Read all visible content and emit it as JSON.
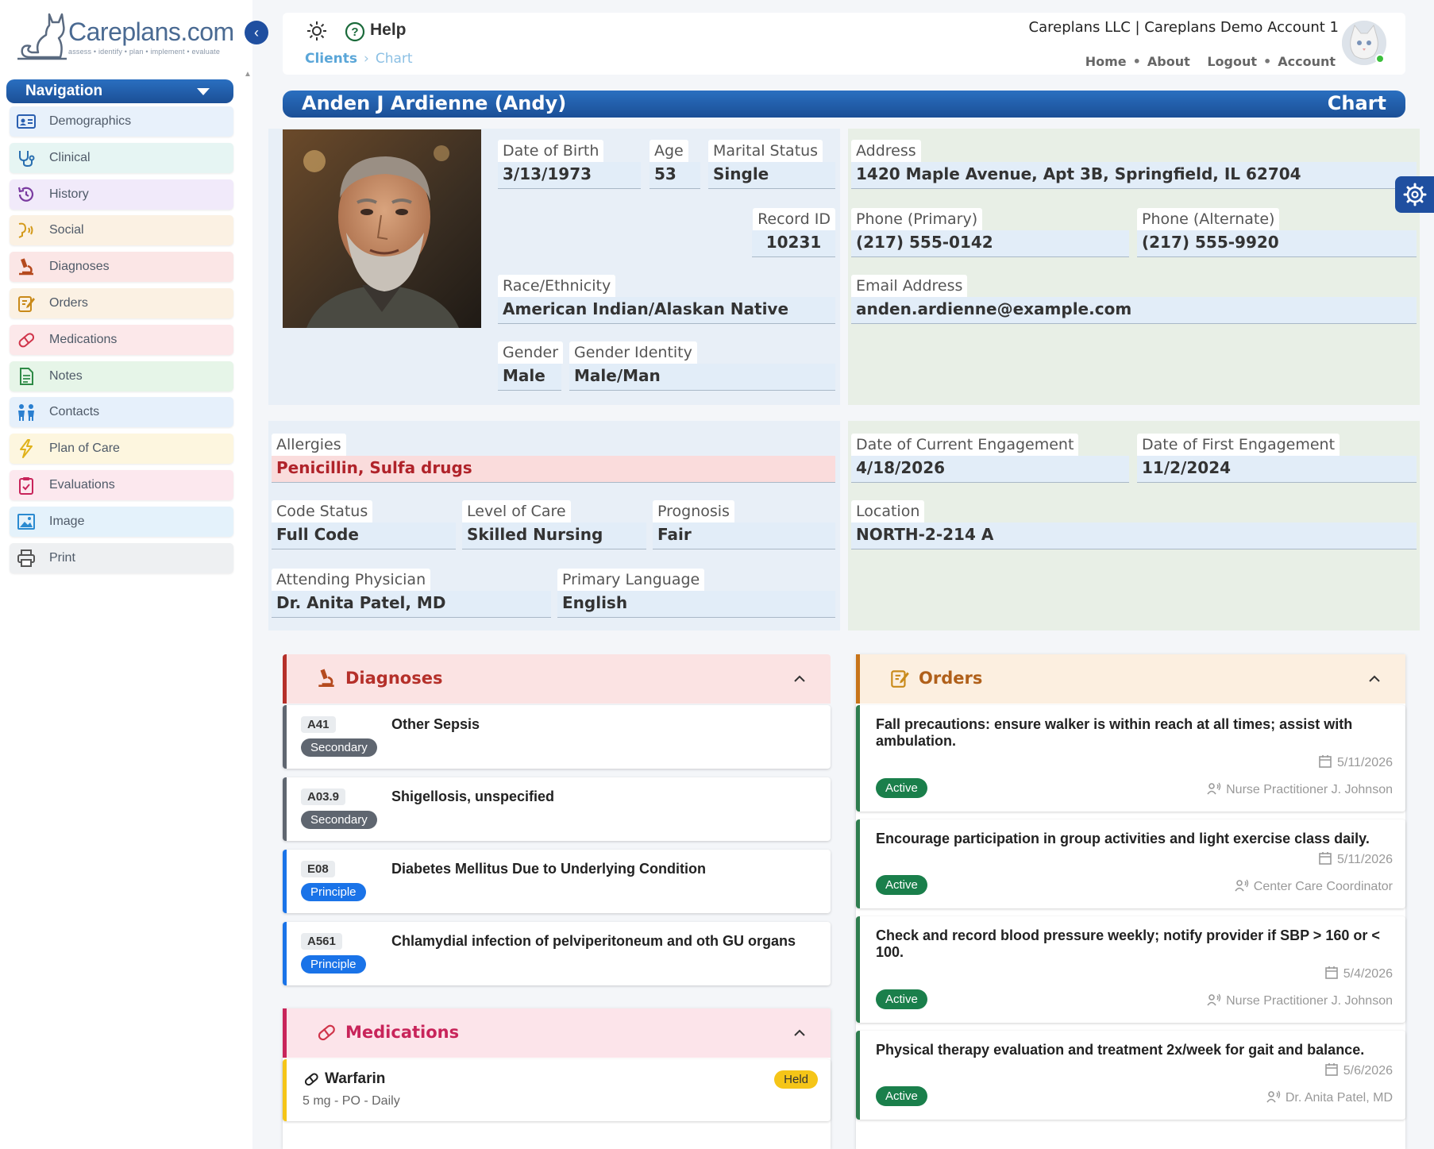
{
  "brand": {
    "logo_text": "Careplans.com",
    "tagline": "assess • identify • plan • implement • evaluate"
  },
  "navigation": {
    "header": "Navigation",
    "items": [
      {
        "label": "Demographics",
        "icon": "id-card-icon",
        "bg": "#e8f1fb",
        "color": "#2a5fb0"
      },
      {
        "label": "Clinical",
        "icon": "stethoscope-icon",
        "bg": "#e6f5f3",
        "color": "#2a6fb0"
      },
      {
        "label": "History",
        "icon": "history-icon",
        "bg": "#f1eafa",
        "color": "#7a3aa0"
      },
      {
        "label": "Social",
        "icon": "social-icon",
        "bg": "#fbf1e3",
        "color": "#d49a1a"
      },
      {
        "label": "Diagnoses",
        "icon": "microscope-icon",
        "bg": "#fbe6e6",
        "color": "#b54a1e"
      },
      {
        "label": "Orders",
        "icon": "clipboard-edit-icon",
        "bg": "#fbf1e3",
        "color": "#c98a1a"
      },
      {
        "label": "Medications",
        "icon": "pill-icon",
        "bg": "#fce8ea",
        "color": "#d0344a"
      },
      {
        "label": "Notes",
        "icon": "document-icon",
        "bg": "#e6f5e8",
        "color": "#2e8a46"
      },
      {
        "label": "Contacts",
        "icon": "people-icon",
        "bg": "#e6f0fb",
        "color": "#2a7fd0"
      },
      {
        "label": "Plan of Care",
        "icon": "lightning-icon",
        "bg": "#fdf6df",
        "color": "#e0b21a"
      },
      {
        "label": "Evaluations",
        "icon": "clipboard-check-icon",
        "bg": "#fce8ee",
        "color": "#c8245a"
      },
      {
        "label": "Image",
        "icon": "image-icon",
        "bg": "#e4f2fb",
        "color": "#2a8ad0"
      },
      {
        "label": "Print",
        "icon": "printer-icon",
        "bg": "#eef0f2",
        "color": "#555"
      }
    ]
  },
  "header": {
    "help_label": "Help",
    "breadcrumb": [
      "Clients",
      "Chart"
    ],
    "account_line": "Careplans LLC | Careplans Demo Account 1",
    "links": [
      "Home",
      "About",
      "Logout",
      "Account"
    ]
  },
  "patient": {
    "name": "Anden J Ardienne (Andy)",
    "section": "Chart"
  },
  "demographics": {
    "dob": {
      "label": "Date of Birth",
      "value": "3/13/1973"
    },
    "age": {
      "label": "Age",
      "value": "53"
    },
    "marital": {
      "label": "Marital Status",
      "value": "Single"
    },
    "record_id": {
      "label": "Record ID",
      "value": "10231"
    },
    "race": {
      "label": "Race/Ethnicity",
      "value": "American Indian/Alaskan Native"
    },
    "gender": {
      "label": "Gender",
      "value": "Male"
    },
    "gender_identity": {
      "label": "Gender Identity",
      "value": "Male/Man"
    },
    "address": {
      "label": "Address",
      "value": "1420 Maple Avenue, Apt 3B, Springfield, IL 62704"
    },
    "phone_primary": {
      "label": "Phone (Primary)",
      "value": "(217) 555-0142"
    },
    "phone_alt": {
      "label": "Phone (Alternate)",
      "value": "(217) 555-9920"
    },
    "email": {
      "label": "Email Address",
      "value": "anden.ardienne@example.com"
    }
  },
  "clinical": {
    "allergies": {
      "label": "Allergies",
      "value": "Penicillin, Sulfa drugs"
    },
    "code_status": {
      "label": "Code Status",
      "value": "Full Code"
    },
    "level_of_care": {
      "label": "Level of Care",
      "value": "Skilled Nursing"
    },
    "prognosis": {
      "label": "Prognosis",
      "value": "Fair"
    },
    "attending": {
      "label": "Attending Physician",
      "value": "Dr. Anita Patel, MD"
    },
    "language": {
      "label": "Primary Language",
      "value": "English"
    },
    "current_engagement": {
      "label": "Date of Current Engagement",
      "value": "4/18/2026"
    },
    "first_engagement": {
      "label": "Date of First Engagement",
      "value": "11/2/2024"
    },
    "location": {
      "label": "Location",
      "value": "NORTH-2-214 A"
    }
  },
  "diagnoses": {
    "title": "Diagnoses",
    "items": [
      {
        "code": "A41",
        "type": "Secondary",
        "name": "Other Sepsis",
        "badge_color": "#5f6670"
      },
      {
        "code": "A03.9",
        "type": "Secondary",
        "name": "Shigellosis, unspecified",
        "badge_color": "#5f6670"
      },
      {
        "code": "E08",
        "type": "Principle",
        "name": "Diabetes Mellitus Due to Underlying Condition",
        "badge_color": "#1a73e8"
      },
      {
        "code": "A561",
        "type": "Principle",
        "name": "Chlamydial infection of pelviperitoneum and oth GU organs",
        "badge_color": "#1a73e8"
      }
    ]
  },
  "medications": {
    "title": "Medications",
    "items": [
      {
        "name": "Warfarin",
        "detail": "5 mg - PO - Daily",
        "status": "Held"
      }
    ]
  },
  "orders": {
    "title": "Orders",
    "items": [
      {
        "text": "Fall precautions: ensure walker is within reach at all times; assist with ambulation.",
        "date": "5/11/2026",
        "by": "Nurse Practitioner J. Johnson",
        "status": "Active"
      },
      {
        "text": "Encourage participation in group activities and light exercise class daily.",
        "date": "5/11/2026",
        "by": "Center Care Coordinator",
        "status": "Active"
      },
      {
        "text": "Check and record blood pressure weekly; notify provider if SBP > 160 or < 100.",
        "date": "5/4/2026",
        "by": "Nurse Practitioner J. Johnson",
        "status": "Active"
      },
      {
        "text": "Physical therapy evaluation and treatment 2x/week for gait and balance.",
        "date": "5/6/2026",
        "by": "Dr. Anita Patel, MD",
        "status": "Active"
      }
    ]
  },
  "colors": {
    "primary": "#1f4fa0",
    "diagnoses_accent": "#b5302a",
    "medications_accent": "#c8245a",
    "orders_accent": "#c8741a",
    "active_green": "#1a7f4b",
    "held_yellow": "#f5c518"
  }
}
